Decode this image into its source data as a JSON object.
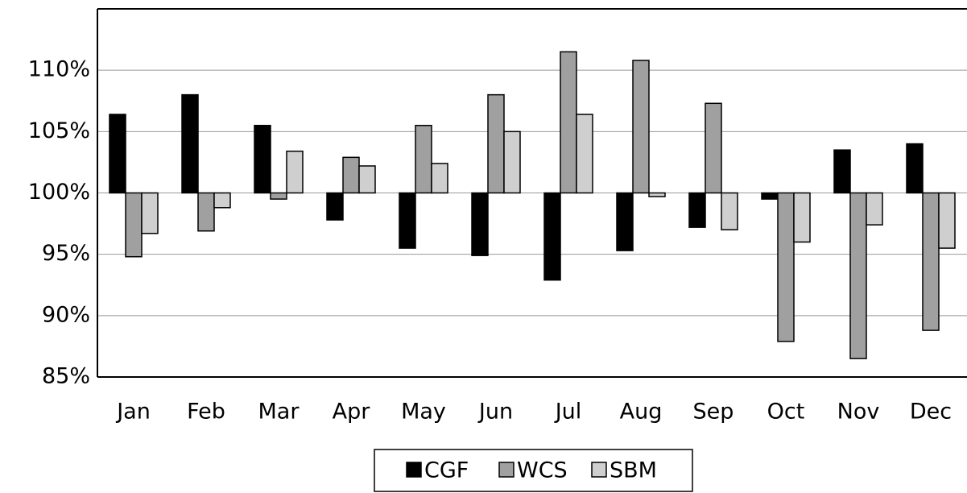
{
  "chart_data": {
    "type": "bar",
    "categories": [
      "Jan",
      "Feb",
      "Mar",
      "Apr",
      "May",
      "Jun",
      "Jul",
      "Aug",
      "Sep",
      "Oct",
      "Nov",
      "Dec"
    ],
    "series": [
      {
        "name": "CGF",
        "color": "#000000",
        "values": [
          106.4,
          108.0,
          105.5,
          97.8,
          95.5,
          94.9,
          92.9,
          95.3,
          97.2,
          99.5,
          103.5,
          104.0
        ]
      },
      {
        "name": "WCS",
        "color": "#a0a0a0",
        "values": [
          94.8,
          96.9,
          99.5,
          102.9,
          105.5,
          108.0,
          111.5,
          110.8,
          107.3,
          87.9,
          86.5,
          88.8
        ]
      },
      {
        "name": "SBM",
        "color": "#cfcfcf",
        "values": [
          96.7,
          98.8,
          103.4,
          102.2,
          102.4,
          105.0,
          106.4,
          99.7,
          97.0,
          96.0,
          97.4,
          95.5
        ]
      }
    ],
    "ylim": [
      85,
      115
    ],
    "yticks": [
      {
        "value": 85,
        "label": "85%"
      },
      {
        "value": 90,
        "label": "90%"
      },
      {
        "value": 95,
        "label": "95%"
      },
      {
        "value": 100,
        "label": "100%"
      },
      {
        "value": 105,
        "label": "105%"
      },
      {
        "value": 110,
        "label": "110%"
      }
    ],
    "bar_base": 100,
    "grid": true,
    "legend_position": "bottom"
  }
}
